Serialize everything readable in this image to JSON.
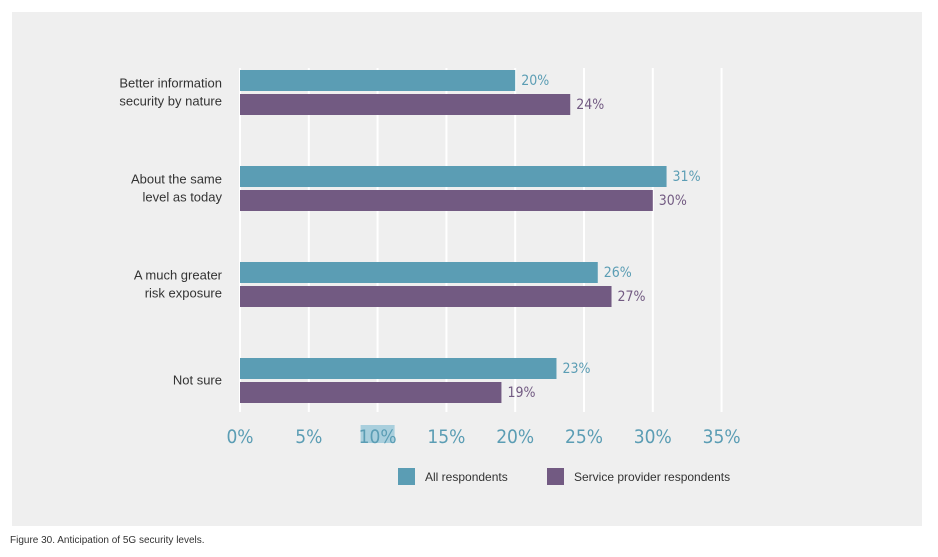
{
  "caption": "Figure 30. Anticipation of 5G security levels.",
  "colors": {
    "all": "#5b9db4",
    "service": "#725a82",
    "highlight": "#a9cfdd",
    "grid": "#ffffff",
    "panel": "#efefef"
  },
  "chart_data": {
    "type": "bar",
    "orientation": "horizontal",
    "categories": [
      [
        "Better information",
        "security by nature"
      ],
      [
        "About the same",
        "level as today"
      ],
      [
        "A much greater",
        "risk exposure"
      ],
      [
        "Not sure"
      ]
    ],
    "series": [
      {
        "name": "All respondents",
        "values": [
          20,
          31,
          26,
          23
        ],
        "labels": [
          "20%",
          "31%",
          "26%",
          "23%"
        ]
      },
      {
        "name": "Service provider respondents",
        "values": [
          24,
          30,
          27,
          19
        ],
        "labels": [
          "24%",
          "30%",
          "27%",
          "19%"
        ]
      }
    ],
    "xlim": [
      0,
      35
    ],
    "xticks": [
      0,
      5,
      10,
      15,
      20,
      25,
      30,
      35
    ],
    "xtick_labels": [
      "0%",
      "5%",
      "10%",
      "15%",
      "20%",
      "25%",
      "30%",
      "35%"
    ],
    "highlighted_tick": "10%",
    "grid": true,
    "legend_position": "bottom"
  }
}
